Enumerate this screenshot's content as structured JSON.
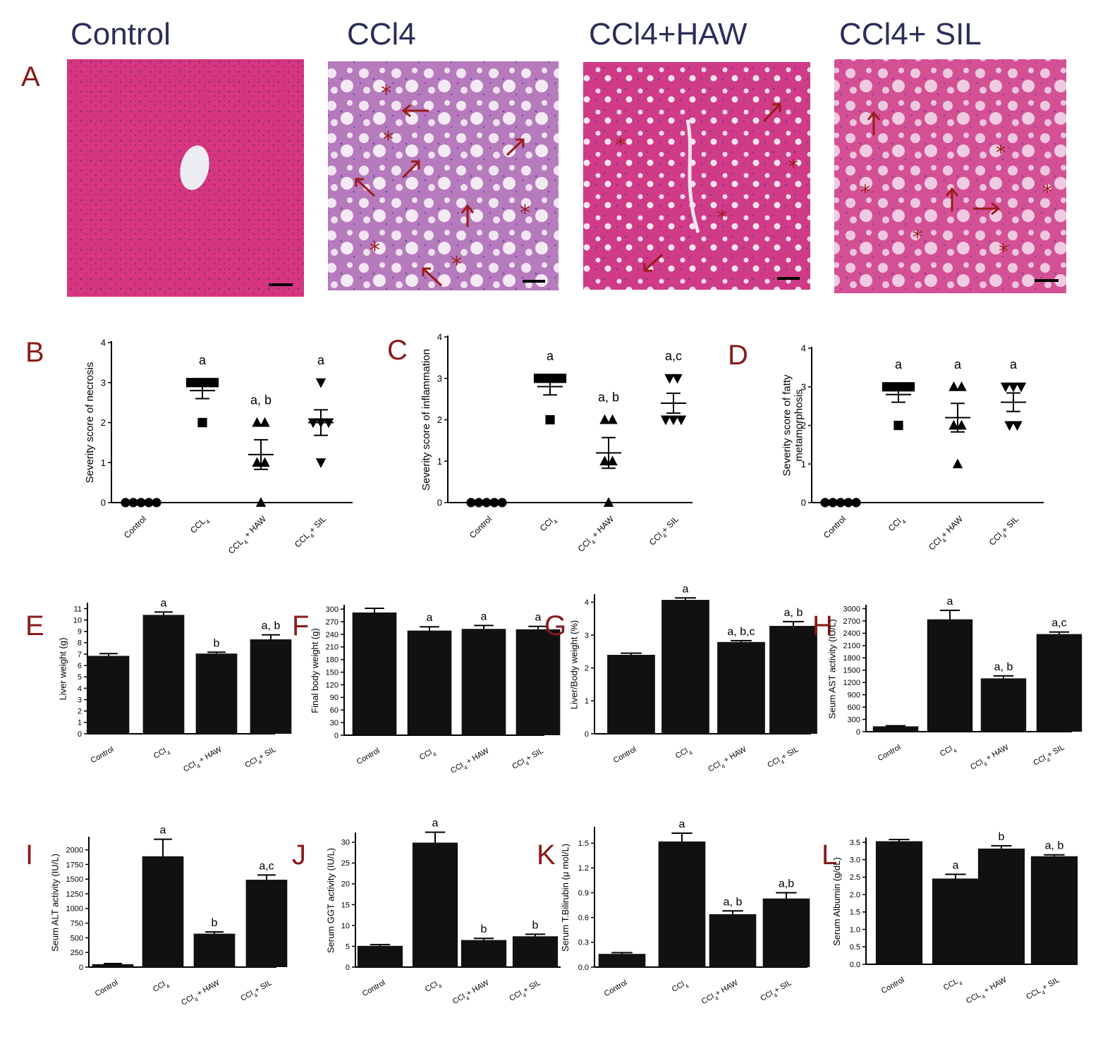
{
  "panel_A": {
    "letter": "A",
    "images": [
      {
        "title": "Control",
        "stain_color": "#d0307a",
        "lesions": "none"
      },
      {
        "title": "CCl4",
        "stain_color": "#b070b8",
        "lesions": "necrosis, fatty vacuoles, inflammation"
      },
      {
        "title": "CCl4+HAW",
        "stain_color": "#c8307e",
        "lesions": "mild vacuoles"
      },
      {
        "title": "CCl4+ SIL",
        "stain_color": "#cf4a8e",
        "lesions": "vacuoles"
      }
    ],
    "marker_color": "#9b1b1b"
  },
  "chart_data": [
    {
      "panel": "B",
      "type": "scatter",
      "ylabel": "Severity score of necrosis",
      "yticks": [
        "0",
        "1",
        "2",
        "3",
        "4"
      ],
      "ylim": [
        0,
        4
      ],
      "categories": [
        "Control",
        "CCL4",
        "CCL4 + HAW",
        "CCL4+ SIL"
      ],
      "markers": [
        "circle",
        "square",
        "triangle",
        "triangle-down"
      ],
      "points": [
        [
          0,
          0,
          0,
          0,
          0
        ],
        [
          2,
          3,
          3,
          3,
          3
        ],
        [
          0,
          1,
          1,
          2,
          2
        ],
        [
          1,
          2,
          2,
          2,
          3
        ]
      ],
      "mean": [
        0,
        2.8,
        1.2,
        2.0
      ],
      "sem": [
        0,
        0.2,
        0.37,
        0.32
      ],
      "sig": [
        "",
        "a",
        "a, b",
        "a"
      ]
    },
    {
      "panel": "C",
      "type": "scatter",
      "ylabel": "Severity score of inflammation",
      "yticks": [
        "0",
        "1",
        "2",
        "3",
        "4"
      ],
      "ylim": [
        0,
        4
      ],
      "categories": [
        "Control",
        "CCl4",
        "CCl4 + HAW",
        "CCl4+ SIL"
      ],
      "markers": [
        "circle",
        "square",
        "triangle",
        "triangle-down"
      ],
      "points": [
        [
          0,
          0,
          0,
          0,
          0
        ],
        [
          2,
          3,
          3,
          3,
          3
        ],
        [
          0,
          1,
          1,
          2,
          2
        ],
        [
          2,
          2,
          2,
          3,
          3
        ]
      ],
      "mean": [
        0,
        2.8,
        1.2,
        2.4
      ],
      "sem": [
        0,
        0.2,
        0.37,
        0.24
      ],
      "sig": [
        "",
        "a",
        "a, b",
        "a,c"
      ]
    },
    {
      "panel": "D",
      "type": "scatter",
      "ylabel": "Severity score of fatty metamorphosis",
      "yticks": [
        "0",
        "1",
        "2",
        "3",
        "4"
      ],
      "ylim": [
        0,
        4
      ],
      "categories": [
        "Control",
        "CCl4",
        "CCl4+ HAW",
        "CCl4+ SIL"
      ],
      "markers": [
        "circle",
        "square",
        "triangle",
        "triangle-down"
      ],
      "points": [
        [
          0,
          0,
          0,
          0,
          0
        ],
        [
          2,
          3,
          3,
          3,
          3
        ],
        [
          1,
          2,
          2,
          3,
          3
        ],
        [
          2,
          2,
          3,
          3,
          3
        ]
      ],
      "mean": [
        0,
        2.8,
        2.2,
        2.6
      ],
      "sem": [
        0,
        0.2,
        0.37,
        0.24
      ],
      "sig": [
        "",
        "a",
        "a",
        "a"
      ]
    },
    {
      "panel": "E",
      "type": "bar",
      "ylabel": "Liver weight (g)",
      "yticks": [
        "0",
        "1",
        "2",
        "3",
        "4",
        "5",
        "6",
        "7",
        "8",
        "9",
        "10",
        "11"
      ],
      "ylim": [
        0,
        11.4
      ],
      "categories": [
        "Control",
        "CCl4",
        "CCl4 + HAW",
        "CCl4+ SIL"
      ],
      "values": [
        6.85,
        10.45,
        7.05,
        8.3
      ],
      "errors": [
        0.2,
        0.25,
        0.12,
        0.4
      ],
      "sig": [
        "",
        "a",
        "b",
        "a, b"
      ]
    },
    {
      "panel": "F",
      "type": "bar",
      "ylabel": "Final body weight (g)",
      "yticks": [
        "0",
        "30",
        "60",
        "90",
        "120",
        "150",
        "180",
        "210",
        "240",
        "270",
        "300"
      ],
      "ylim": [
        0,
        307
      ],
      "categories": [
        "Control",
        "CCl4",
        "CCl4 + HAW",
        "CCl4+ SIL"
      ],
      "values": [
        292,
        249,
        253,
        252
      ],
      "errors": [
        10,
        9,
        8,
        7
      ],
      "sig": [
        "",
        "a",
        "a",
        "a"
      ]
    },
    {
      "panel": "G",
      "type": "bar",
      "ylabel": "Liver/Body weight (%)",
      "yticks": [
        "0",
        "1",
        "2",
        "3",
        "4"
      ],
      "ylim": [
        0,
        4.2
      ],
      "categories": [
        "Control",
        "CCl4",
        "CCl4 + HAW",
        "CCl4+ SIL"
      ],
      "values": [
        2.4,
        4.07,
        2.79,
        3.28
      ],
      "errors": [
        0.05,
        0.06,
        0.04,
        0.13
      ],
      "sig": [
        "",
        "a",
        "a, b,c",
        "a, b"
      ]
    },
    {
      "panel": "H",
      "type": "bar",
      "ylabel": "Seum AST activity (IU/L)",
      "yticks": [
        "0",
        "300",
        "600",
        "900",
        "1200",
        "1500",
        "1800",
        "2100",
        "2400",
        "2700",
        "3000"
      ],
      "ylim": [
        0,
        3060
      ],
      "categories": [
        "Control",
        "CCl4",
        "CCl4 + HAW",
        "CCl4+ SIL"
      ],
      "values": [
        130,
        2740,
        1300,
        2380
      ],
      "errors": [
        15,
        220,
        60,
        50
      ],
      "sig": [
        "",
        "a",
        "a, b",
        "a,c"
      ]
    },
    {
      "panel": "I",
      "type": "bar",
      "ylabel": "Seum ALT activity (IU/L)",
      "yticks": [
        "0",
        "250",
        "500",
        "750",
        "1000",
        "1250",
        "1500",
        "1750",
        "2000"
      ],
      "ylim": [
        0,
        2200
      ],
      "categories": [
        "Control",
        "CCl4",
        "CCl4 + HAW",
        "CCl4+ SIL"
      ],
      "values": [
        50,
        1890,
        570,
        1490
      ],
      "errors": [
        10,
        290,
        30,
        80
      ],
      "sig": [
        "",
        "a",
        "b",
        "a,c"
      ]
    },
    {
      "panel": "J",
      "type": "bar",
      "ylabel": "Serum GGT activity (IU/L)",
      "yticks": [
        "0",
        "5",
        "10",
        "15",
        "20",
        "25",
        "30"
      ],
      "ylim": [
        0,
        32
      ],
      "categories": [
        "Control",
        "CCl4",
        "CCl4+ HAW",
        "CCl4+ SIL"
      ],
      "values": [
        5.1,
        29.9,
        6.5,
        7.4
      ],
      "errors": [
        0.3,
        2.5,
        0.4,
        0.5
      ],
      "sig": [
        "",
        "a",
        "b",
        "b"
      ]
    },
    {
      "panel": "K",
      "type": "bar",
      "ylabel": "Serum T.Bilirubin (μ mol/L)",
      "yticks": [
        "0.0",
        "0.3",
        "0.6",
        "0.9",
        "1.2",
        "1.5"
      ],
      "ylim": [
        0,
        1.68
      ],
      "categories": [
        "Control",
        "CCl4",
        "CCl4+ HAW",
        "CCl4+ SIL"
      ],
      "values": [
        0.16,
        1.52,
        0.64,
        0.83
      ],
      "errors": [
        0.015,
        0.1,
        0.04,
        0.07
      ],
      "sig": [
        "",
        "a",
        "a, b",
        "a,b"
      ]
    },
    {
      "panel": "L",
      "type": "bar",
      "ylabel": "Serum Albumin (g/dL)",
      "yticks": [
        "0.0",
        "0.5",
        "1.0",
        "1.5",
        "2.0",
        "2.5",
        "3.0",
        "3.5"
      ],
      "ylim": [
        0,
        3.6
      ],
      "categories": [
        "Control",
        "CCL4",
        "CCL4 + HAW",
        "CCL4+ SIL"
      ],
      "values": [
        3.53,
        2.46,
        3.32,
        3.1
      ],
      "errors": [
        0.05,
        0.12,
        0.08,
        0.04
      ],
      "sig": [
        "",
        "a",
        "b",
        "a, b"
      ]
    }
  ]
}
